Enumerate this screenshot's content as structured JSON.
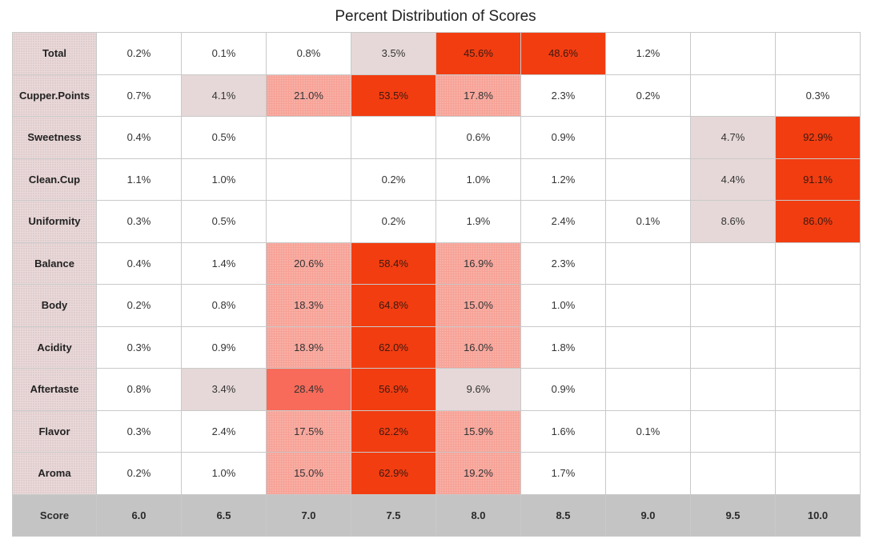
{
  "chart_data": {
    "type": "heatmap",
    "title": "Percent Distribution of Scores",
    "x_header": "Score",
    "x": [
      "6.0",
      "6.5",
      "7.0",
      "7.5",
      "8.0",
      "8.5",
      "9.0",
      "9.5",
      "10.0"
    ],
    "rows": [
      {
        "name": "Total",
        "values": [
          0.2,
          0.1,
          0.8,
          3.5,
          45.6,
          48.6,
          1.2,
          null,
          null
        ]
      },
      {
        "name": "Cupper.Points",
        "values": [
          0.7,
          4.1,
          21.0,
          53.5,
          17.8,
          2.3,
          0.2,
          null,
          0.3
        ]
      },
      {
        "name": "Sweetness",
        "values": [
          0.4,
          0.5,
          null,
          null,
          0.6,
          0.9,
          null,
          4.7,
          92.9
        ]
      },
      {
        "name": "Clean.Cup",
        "values": [
          1.1,
          1.0,
          null,
          0.2,
          1.0,
          1.2,
          null,
          4.4,
          91.1
        ]
      },
      {
        "name": "Uniformity",
        "values": [
          0.3,
          0.5,
          null,
          0.2,
          1.9,
          2.4,
          0.1,
          8.6,
          86.0
        ]
      },
      {
        "name": "Balance",
        "values": [
          0.4,
          1.4,
          20.6,
          58.4,
          16.9,
          2.3,
          null,
          null,
          null
        ]
      },
      {
        "name": "Body",
        "values": [
          0.2,
          0.8,
          18.3,
          64.8,
          15.0,
          1.0,
          null,
          null,
          null
        ]
      },
      {
        "name": "Acidity",
        "values": [
          0.3,
          0.9,
          18.9,
          62.0,
          16.0,
          1.8,
          null,
          null,
          null
        ]
      },
      {
        "name": "Aftertaste",
        "values": [
          0.8,
          3.4,
          28.4,
          56.9,
          9.6,
          0.9,
          null,
          null,
          null
        ]
      },
      {
        "name": "Flavor",
        "values": [
          0.3,
          2.4,
          17.5,
          62.2,
          15.9,
          1.6,
          0.1,
          null,
          null
        ]
      },
      {
        "name": "Aroma",
        "values": [
          0.2,
          1.0,
          15.0,
          62.9,
          19.2,
          1.7,
          null,
          null,
          null
        ]
      }
    ],
    "value_suffix": "%",
    "colors": {
      "low": "#e6d8d8",
      "mid": "#f7a196",
      "high": "#f86a59",
      "max": "#f23d11",
      "label_bg": "#ead9da",
      "footer_bg": "#c4c4c4"
    }
  }
}
